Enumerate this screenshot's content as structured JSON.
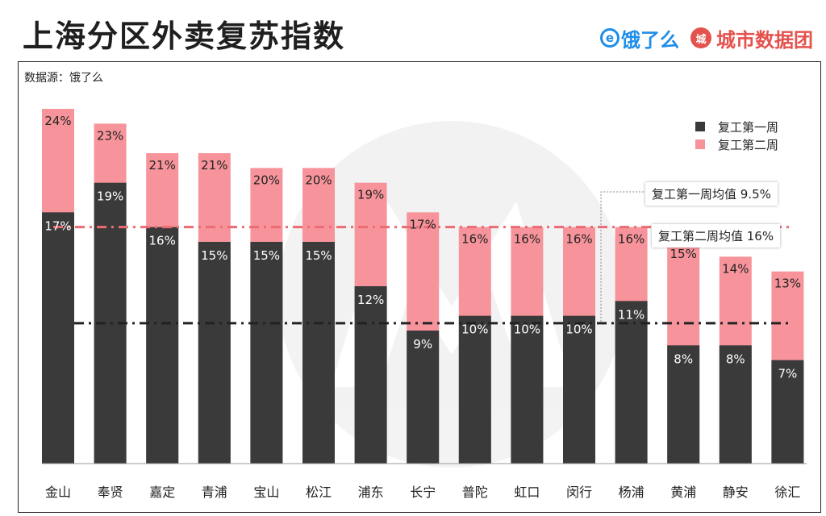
{
  "header": {
    "title": "上海分区外卖复苏指数",
    "brand_eleme_mark": "e",
    "brand_eleme": "饿了么",
    "brand_city_mark": "城",
    "brand_city": "城市数据团"
  },
  "source": "数据源：饿了么",
  "colors": {
    "week1": "#3a3a3a",
    "week2": "#f7949b",
    "avg1_line": "#222222",
    "avg2_line": "#ec6b72"
  },
  "chart_data": {
    "type": "bar",
    "stacked": "overlay",
    "categories": [
      "金山",
      "奉贤",
      "嘉定",
      "青浦",
      "宝山",
      "松江",
      "浦东",
      "长宁",
      "普陀",
      "虹口",
      "闵行",
      "杨浦",
      "黄浦",
      "静安",
      "徐汇"
    ],
    "series": [
      {
        "name": "复工第一周",
        "values": [
          17,
          19,
          16,
          15,
          15,
          15,
          12,
          9,
          10,
          10,
          10,
          11,
          8,
          8,
          7
        ],
        "labels": [
          "17%",
          "19%",
          "16%",
          "15%",
          "15%",
          "15%",
          "12%",
          "9%",
          "10%",
          "10%",
          "10%",
          "11%",
          "8%",
          "8%",
          "7%"
        ]
      },
      {
        "name": "复工第二周",
        "values": [
          24,
          23,
          21,
          21,
          20,
          20,
          19,
          17,
          16,
          16,
          16,
          16,
          15,
          14,
          13
        ],
        "labels": [
          "24%",
          "23%",
          "21%",
          "21%",
          "20%",
          "20%",
          "19%",
          "17%",
          "16%",
          "16%",
          "16%",
          "16%",
          "15%",
          "14%",
          "13%"
        ]
      }
    ],
    "averages": [
      {
        "label": "复工第一周均值 9.5%",
        "value": 9.5
      },
      {
        "label": "复工第二周均值 16%",
        "value": 16
      }
    ],
    "ylim": [
      0,
      30
    ],
    "legend_position": "top-right",
    "grid": false
  }
}
